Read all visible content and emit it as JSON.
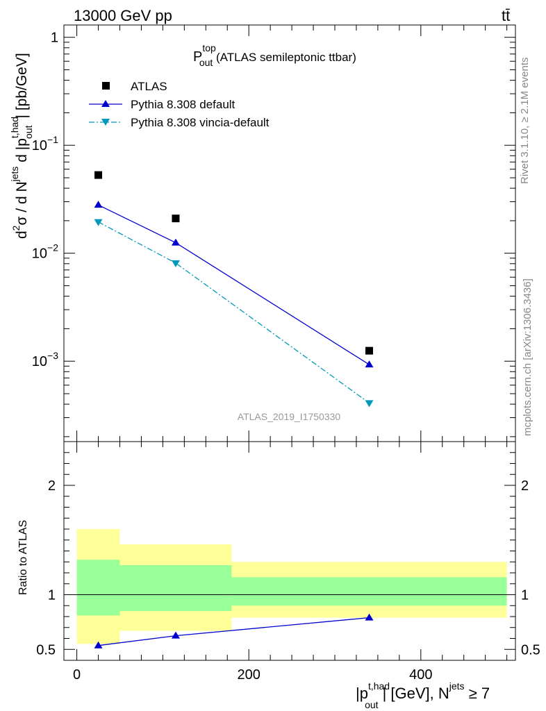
{
  "header": {
    "energy_label": "13000 GeV pp",
    "process_label": "tt̄"
  },
  "side_labels": {
    "rivet": "Rivet 3.1.10, ≥ 2.1M events",
    "mcplots": "mcplots.cern.ch [arXiv:1306.3436]"
  },
  "colors": {
    "atlas": "#000000",
    "pythia_default": "#0000cc",
    "pythia_vincia": "#0099bb",
    "band_inner": "#99ff99",
    "band_outer": "#ffff99"
  },
  "chart_data": [
    {
      "type": "scatter",
      "title": {
        "main": "P",
        "sup": "top",
        "sub": "out",
        "rest": " (ATLAS semileptonic ttbar)"
      },
      "ylabel": {
        "d2": "d",
        "sigma_sup": "2",
        "sigma": "σ  /  d N",
        "jets_sup": "jets",
        "rest": " d |p",
        "thad_sup": "t,had",
        "out_sub": "out",
        "units": "| [pb/GeV]"
      },
      "y_scale": "log",
      "ylim": [
        0.00018,
        1.3
      ],
      "xlim": [
        -15,
        510
      ],
      "y_ticks": [
        {
          "value": 1,
          "base": "1",
          "exp": ""
        },
        {
          "value": 0.1,
          "base": "10",
          "exp": "−1"
        },
        {
          "value": 0.01,
          "base": "10",
          "exp": "−2"
        },
        {
          "value": 0.001,
          "base": "10",
          "exp": "−3"
        }
      ],
      "watermark": "ATLAS_2019_I1750330",
      "legend_position": "top-left",
      "series": [
        {
          "name": "ATLAS",
          "marker": "square",
          "x": [
            25,
            115,
            340
          ],
          "y": [
            0.053,
            0.021,
            0.00125
          ]
        },
        {
          "name": "Pythia 8.308 default",
          "marker": "triangle-up",
          "line": "solid",
          "x": [
            25,
            115,
            340
          ],
          "y": [
            0.028,
            0.0125,
            0.00093
          ]
        },
        {
          "name": "Pythia 8.308 vincia-default",
          "marker": "triangle-down",
          "line": "dashdot",
          "x": [
            25,
            115,
            340
          ],
          "y": [
            0.0195,
            0.0081,
            0.00041
          ]
        }
      ]
    },
    {
      "type": "scatter",
      "ylabel": "Ratio to ATLAS",
      "xlabel": {
        "p": "|p",
        "thad_sup": "t,had",
        "out_sub": "out",
        "rest": "| [GeV], N",
        "jets_sup": "jets",
        "cond": " ≥ 7"
      },
      "xlim": [
        -15,
        510
      ],
      "ylim": [
        0.4,
        2.4
      ],
      "x_ticks": [
        "0",
        "200",
        "400"
      ],
      "x_tick_values": [
        0,
        200,
        400
      ],
      "y_ticks": [
        "0.5",
        "1",
        "2"
      ],
      "y_tick_values": [
        0.5,
        1,
        2
      ],
      "bins": [
        {
          "x_low": 0,
          "x_high": 50,
          "inner": [
            0.81,
            1.32
          ],
          "outer": [
            0.55,
            1.6
          ]
        },
        {
          "x_low": 50,
          "x_high": 180,
          "inner": [
            0.85,
            1.27
          ],
          "outer": [
            0.67,
            1.46
          ]
        },
        {
          "x_low": 180,
          "x_high": 500,
          "inner": [
            0.9,
            1.16
          ],
          "outer": [
            0.79,
            1.3
          ]
        }
      ],
      "series": [
        {
          "name": "Pythia 8.308 default",
          "x": [
            25,
            115,
            340
          ],
          "y": [
            0.535,
            0.625,
            0.79
          ]
        }
      ]
    }
  ]
}
